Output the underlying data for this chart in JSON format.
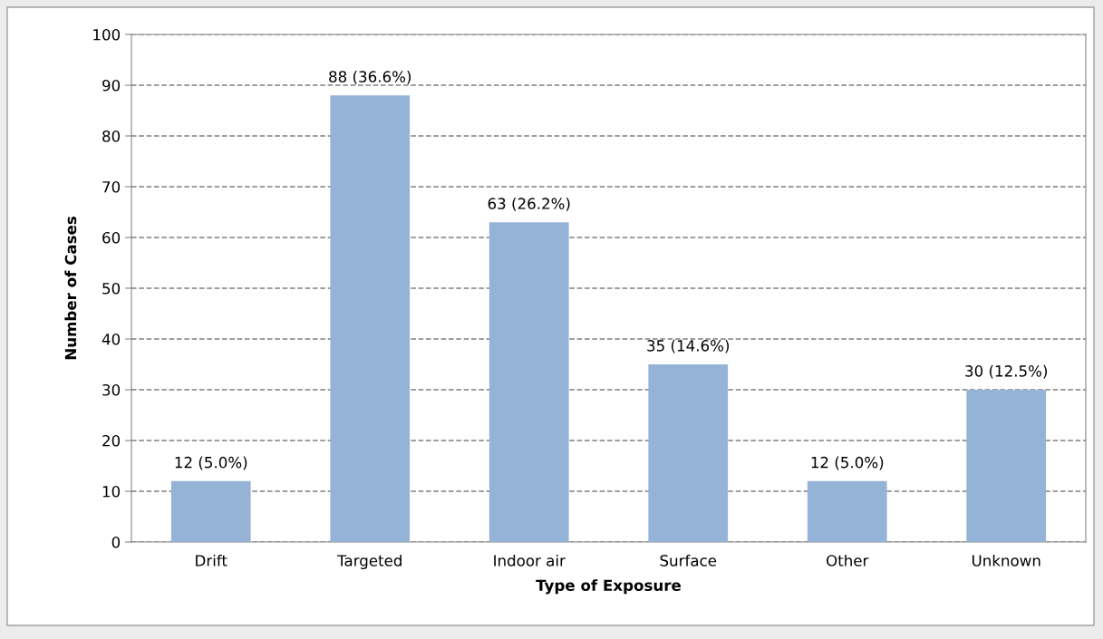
{
  "chart_data": {
    "type": "bar",
    "xlabel": "Type of Exposure",
    "ylabel": "Number of Cases",
    "categories": [
      "Drift",
      "Targeted",
      "Indoor air",
      "Surface",
      "Other",
      "Unknown"
    ],
    "values": [
      12,
      88,
      63,
      35,
      12,
      30
    ],
    "value_labels": [
      "12 (5.0%)",
      "88 (36.6%)",
      "63 (26.2%)",
      "35 (14.6%)",
      "12 (5.0%)",
      "30 (12.5%)"
    ],
    "color": "#95b3d7",
    "ylim": [
      0,
      100
    ],
    "yticks": [
      0,
      10,
      20,
      30,
      40,
      50,
      60,
      70,
      80,
      90,
      100
    ],
    "grid": "y",
    "line_style": "dashed"
  }
}
